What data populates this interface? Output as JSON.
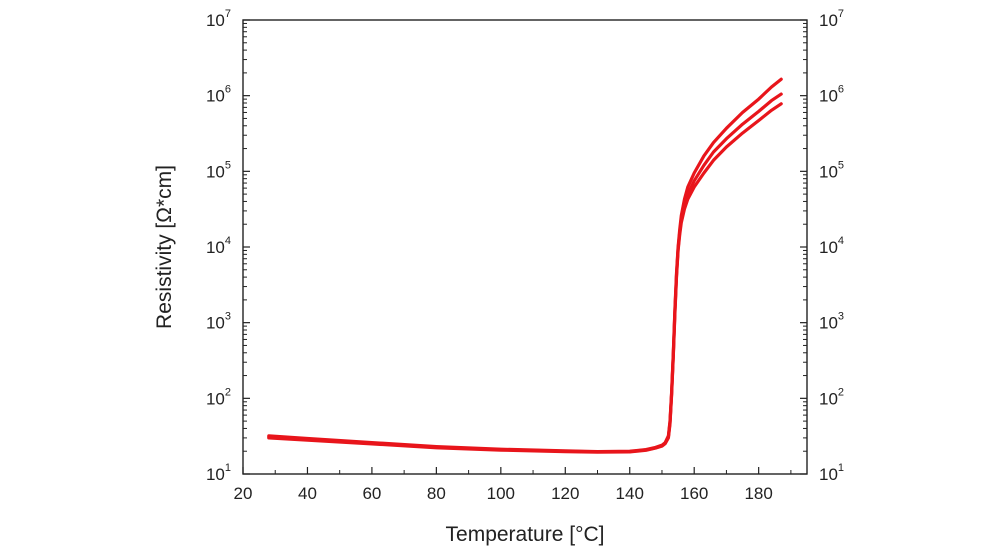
{
  "chart_data": {
    "type": "line",
    "title": "",
    "xlabel": "Temperature [°C]",
    "ylabel": "Resistivity [Ω*cm]",
    "xlim": [
      20,
      195
    ],
    "ylim": [
      10,
      10000000
    ],
    "yscale": "log",
    "x_ticks": [
      20,
      40,
      60,
      80,
      100,
      120,
      140,
      160,
      180
    ],
    "y_ticks": [
      {
        "value": 10,
        "base": "10",
        "exp": "1"
      },
      {
        "value": 100,
        "base": "10",
        "exp": "2"
      },
      {
        "value": 1000,
        "base": "10",
        "exp": "3"
      },
      {
        "value": 10000,
        "base": "10",
        "exp": "4"
      },
      {
        "value": 100000,
        "base": "10",
        "exp": "5"
      },
      {
        "value": 1000000,
        "base": "10",
        "exp": "6"
      },
      {
        "value": 10000000,
        "base": "10",
        "exp": "7"
      }
    ],
    "grid": false,
    "line_color": "#e8151b",
    "series": [
      {
        "x": [
          28,
          40,
          60,
          80,
          100,
          120,
          130,
          140,
          145,
          148,
          150,
          151,
          152,
          152.5,
          153,
          153.5,
          154,
          154.5,
          155,
          155.5,
          156,
          157,
          158,
          160,
          163,
          166,
          170,
          175,
          180,
          184,
          187
        ],
        "y": [
          32,
          29.5,
          26,
          23,
          21.3,
          20.2,
          19.8,
          20,
          21,
          22.5,
          24,
          26,
          32,
          50,
          120,
          400,
          1500,
          4500,
          10000,
          17000,
          26000,
          43000,
          62000,
          95000,
          160000,
          240000,
          370000,
          600000,
          900000,
          1300000,
          1650000
        ]
      },
      {
        "x": [
          28,
          40,
          60,
          80,
          100,
          120,
          130,
          140,
          145,
          148,
          150,
          151,
          152,
          152.5,
          153,
          153.5,
          154,
          154.5,
          155,
          155.5,
          156,
          157,
          158,
          160,
          163,
          166,
          170,
          175,
          180,
          184,
          187
        ],
        "y": [
          31,
          28.8,
          25.5,
          22.6,
          21,
          20,
          19.6,
          19.8,
          20.8,
          22.2,
          23.7,
          25.6,
          31,
          48,
          115,
          380,
          1400,
          4200,
          9500,
          15500,
          23000,
          36000,
          50000,
          75000,
          120000,
          180000,
          270000,
          420000,
          620000,
          860000,
          1050000
        ]
      },
      {
        "x": [
          28,
          40,
          60,
          80,
          100,
          120,
          130,
          140,
          145,
          148,
          150,
          151,
          152,
          152.5,
          153,
          153.5,
          154,
          154.5,
          155,
          155.5,
          156,
          157,
          158,
          160,
          163,
          166,
          170,
          175,
          180,
          184,
          187
        ],
        "y": [
          30,
          28,
          25,
          22.2,
          20.7,
          19.8,
          19.4,
          19.6,
          20.6,
          22,
          23.4,
          25.2,
          30,
          46,
          110,
          360,
          1300,
          4000,
          9000,
          14500,
          21000,
          32000,
          43000,
          62000,
          95000,
          140000,
          210000,
          320000,
          470000,
          640000,
          780000
        ]
      }
    ]
  }
}
